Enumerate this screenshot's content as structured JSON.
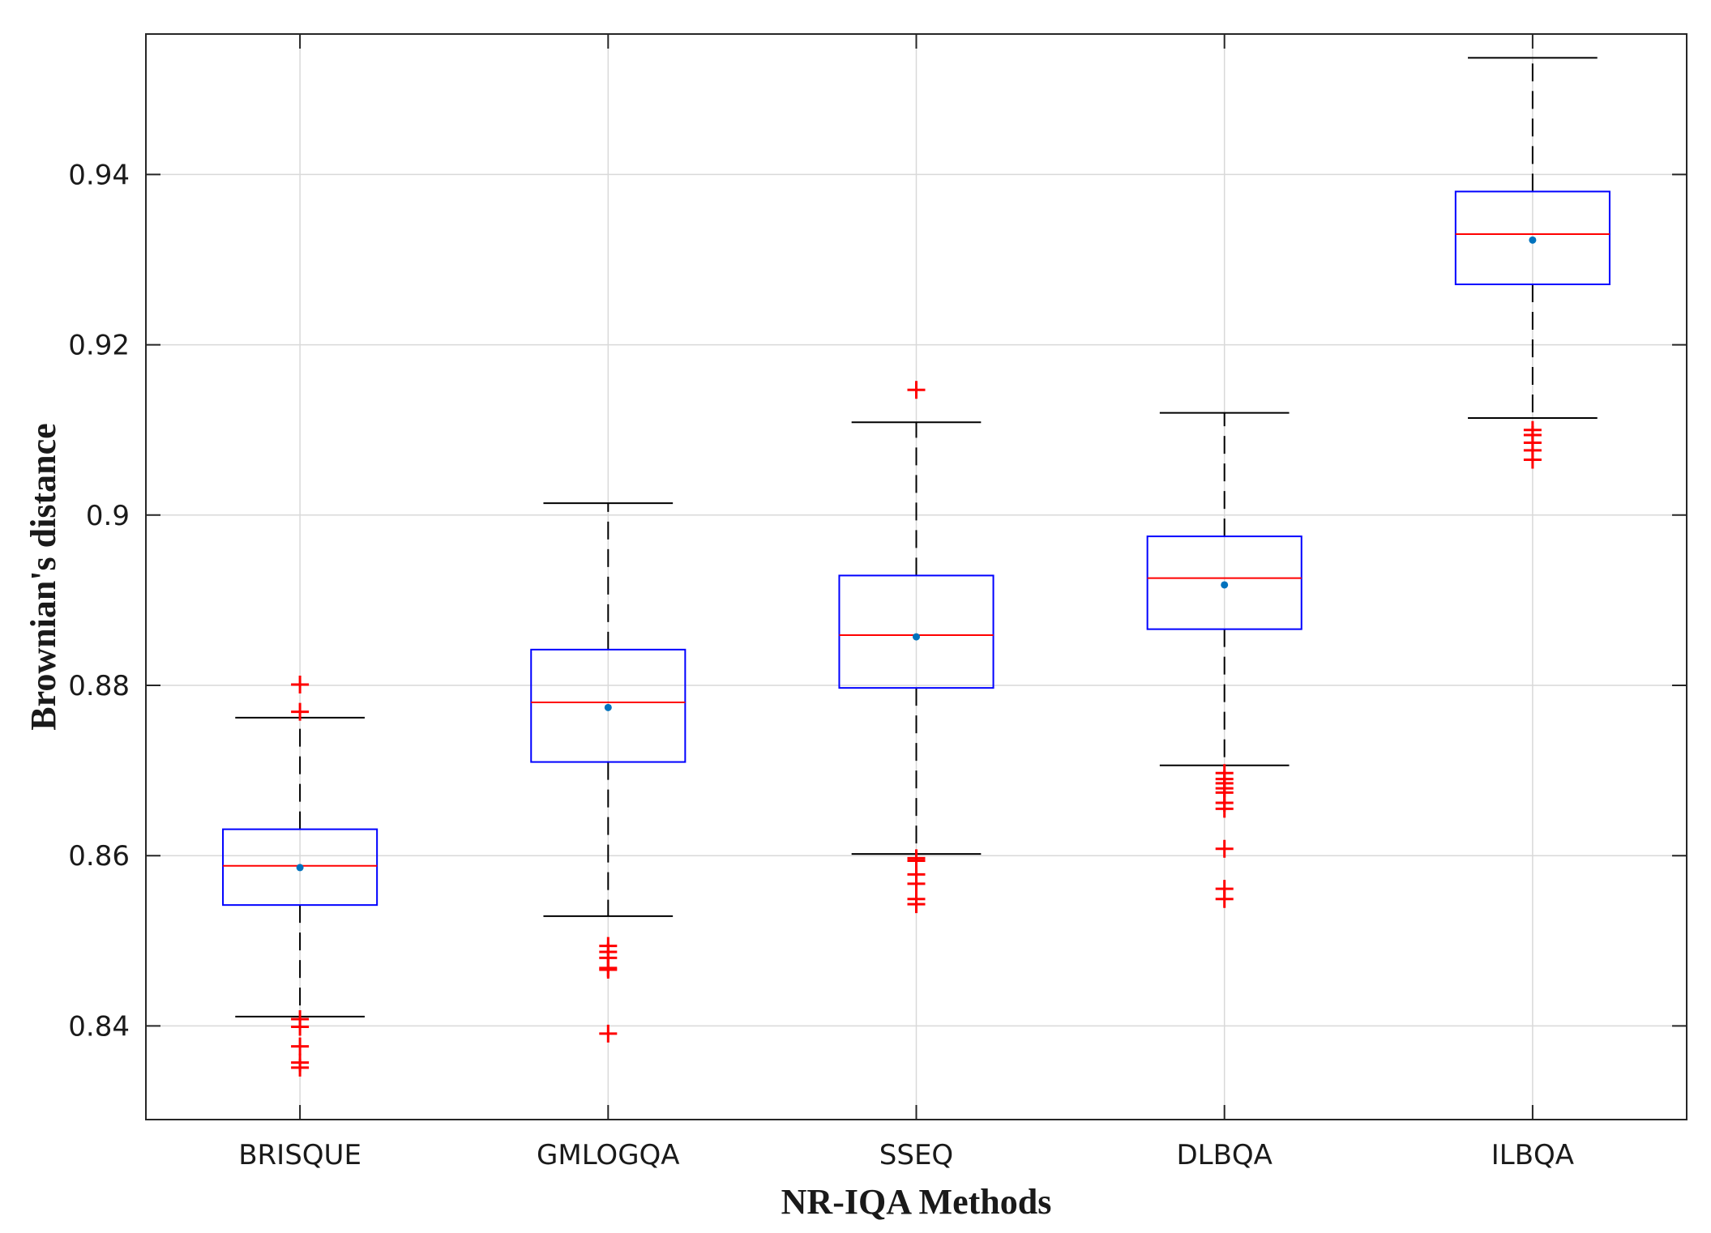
{
  "chart_data": {
    "type": "box",
    "xlabel": "NR-IQA Methods",
    "ylabel": "Brownian's distance",
    "ylim": [
      0.829,
      0.9565
    ],
    "yticks": [
      0.84,
      0.86,
      0.88,
      0.9,
      0.92,
      0.94
    ],
    "ytick_labels": [
      "0.84",
      "0.86",
      "0.88",
      "0.9",
      "0.92",
      "0.94"
    ],
    "grid": true,
    "categories": [
      "BRISQUE",
      "GMLOGQA",
      "SSEQ",
      "DLBQA",
      "ILBQA"
    ],
    "boxes": [
      {
        "category": "BRISQUE",
        "whisker_low": 0.8411,
        "q1": 0.8542,
        "median": 0.8588,
        "q3": 0.8631,
        "whisker_high": 0.8762,
        "mean": 0.8586,
        "outliers": [
          0.8801,
          0.8769,
          0.8408,
          0.8399,
          0.8376,
          0.8357,
          0.8351
        ]
      },
      {
        "category": "GMLOGQA",
        "whisker_low": 0.8529,
        "q1": 0.871,
        "median": 0.878,
        "q3": 0.8842,
        "whisker_high": 0.9014,
        "mean": 0.8774,
        "outliers": [
          0.8494,
          0.8487,
          0.848,
          0.8468,
          0.8466,
          0.8391
        ]
      },
      {
        "category": "SSEQ",
        "whisker_low": 0.8602,
        "q1": 0.8797,
        "median": 0.8859,
        "q3": 0.8929,
        "whisker_high": 0.9109,
        "mean": 0.8857,
        "outliers": [
          0.9147,
          0.8597,
          0.8594,
          0.8578,
          0.8567,
          0.8549,
          0.8543
        ]
      },
      {
        "category": "DLBQA",
        "whisker_low": 0.8706,
        "q1": 0.8866,
        "median": 0.8926,
        "q3": 0.8975,
        "whisker_high": 0.912,
        "mean": 0.8918,
        "outliers": [
          0.8697,
          0.869,
          0.8685,
          0.8679,
          0.8674,
          0.8662,
          0.8655,
          0.8608,
          0.8561,
          0.8549
        ]
      },
      {
        "category": "ILBQA",
        "whisker_low": 0.9114,
        "q1": 0.9271,
        "median": 0.933,
        "q3": 0.938,
        "whisker_high": 0.9537,
        "mean": 0.9323,
        "outliers": [
          0.91,
          0.9094,
          0.9085,
          0.9076,
          0.9065
        ]
      }
    ],
    "colors": {
      "box": "#0000ff",
      "median": "#ff0000",
      "whisker": "#000000",
      "outlier": "#ff0000",
      "mean": "#0072bd",
      "grid": "#d9d9d9",
      "axes": "#262626"
    }
  }
}
